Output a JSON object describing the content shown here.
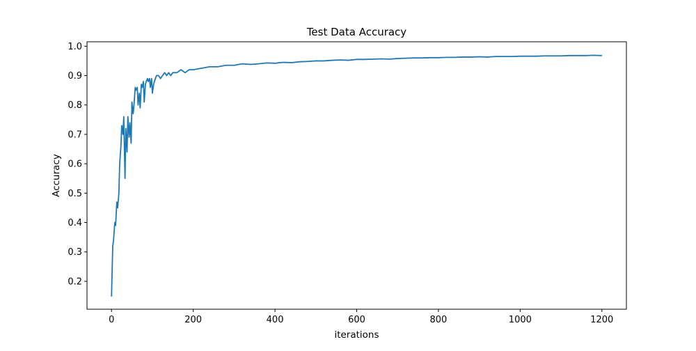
{
  "chart_data": {
    "type": "line",
    "title": "Test Data Accuracy",
    "xlabel": "iterations",
    "ylabel": "Accuracy",
    "xlim": [
      -60,
      1260
    ],
    "ylim": [
      0.105,
      1.015
    ],
    "xticks": [
      0,
      200,
      400,
      600,
      800,
      1000,
      1200
    ],
    "yticks": [
      0.2,
      0.3,
      0.4,
      0.5,
      0.6,
      0.7,
      0.8,
      0.9,
      1.0
    ],
    "xtick_labels": [
      "0",
      "200",
      "400",
      "600",
      "800",
      "1000",
      "1200"
    ],
    "ytick_labels": [
      "0.2",
      "0.3",
      "0.4",
      "0.5",
      "0.6",
      "0.7",
      "0.8",
      "0.9",
      "1.0"
    ],
    "grid": false,
    "legend": "none",
    "series": [
      {
        "color": "#1f77b4",
        "x": [
          0,
          3,
          5,
          8,
          10,
          13,
          15,
          18,
          20,
          23,
          25,
          28,
          30,
          33,
          35,
          38,
          40,
          43,
          45,
          48,
          50,
          53,
          55,
          58,
          60,
          63,
          65,
          68,
          70,
          73,
          75,
          78,
          80,
          83,
          85,
          88,
          90,
          93,
          95,
          98,
          100,
          103,
          105,
          110,
          115,
          120,
          125,
          130,
          135,
          140,
          145,
          150,
          160,
          170,
          180,
          190,
          200,
          220,
          240,
          260,
          280,
          300,
          320,
          340,
          360,
          380,
          400,
          420,
          440,
          460,
          480,
          500,
          520,
          540,
          560,
          580,
          600,
          620,
          640,
          660,
          680,
          700,
          720,
          740,
          760,
          780,
          800,
          820,
          840,
          860,
          880,
          900,
          920,
          940,
          960,
          980,
          1000,
          1020,
          1040,
          1060,
          1080,
          1100,
          1120,
          1140,
          1160,
          1180,
          1199
        ],
        "y": [
          0.15,
          0.32,
          0.34,
          0.4,
          0.39,
          0.47,
          0.45,
          0.5,
          0.6,
          0.66,
          0.73,
          0.7,
          0.76,
          0.55,
          0.72,
          0.64,
          0.76,
          0.69,
          0.74,
          0.67,
          0.81,
          0.77,
          0.8,
          0.86,
          0.85,
          0.86,
          0.8,
          0.84,
          0.79,
          0.87,
          0.86,
          0.88,
          0.81,
          0.87,
          0.88,
          0.89,
          0.88,
          0.89,
          0.86,
          0.89,
          0.84,
          0.87,
          0.88,
          0.9,
          0.9,
          0.89,
          0.9,
          0.91,
          0.9,
          0.91,
          0.9,
          0.91,
          0.91,
          0.92,
          0.91,
          0.92,
          0.92,
          0.925,
          0.93,
          0.93,
          0.935,
          0.935,
          0.94,
          0.938,
          0.94,
          0.943,
          0.942,
          0.945,
          0.944,
          0.947,
          0.948,
          0.95,
          0.95,
          0.952,
          0.953,
          0.952,
          0.955,
          0.955,
          0.956,
          0.957,
          0.956,
          0.958,
          0.959,
          0.96,
          0.96,
          0.961,
          0.961,
          0.962,
          0.962,
          0.963,
          0.963,
          0.964,
          0.963,
          0.965,
          0.965,
          0.965,
          0.966,
          0.966,
          0.966,
          0.967,
          0.967,
          0.967,
          0.968,
          0.968,
          0.968,
          0.969,
          0.968
        ]
      }
    ]
  }
}
